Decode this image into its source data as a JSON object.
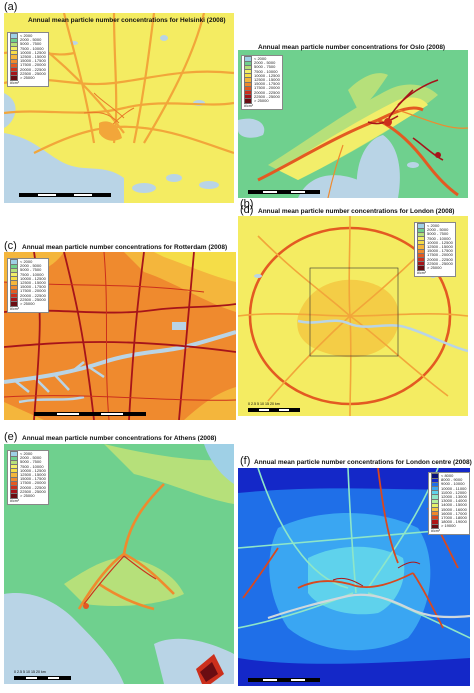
{
  "panels": [
    {
      "label": "(a)",
      "title": "Annual mean particle number concentrations for Helsinki (2008)",
      "legend": [
        "< 2000",
        "2000 - 5000",
        "5000 - 7500",
        "7500 - 10000",
        "10000 - 12500",
        "12500 - 15000",
        "15000 - 17500",
        "17500 - 20000",
        "20000 - 22500",
        "22500 - 25000",
        "> 25000"
      ],
      "unit": "#/cm³"
    },
    {
      "label": "(b)",
      "title": "Annual mean particle number concentrations for Oslo (2008)",
      "legend": [
        "< 2000",
        "2000 - 5000",
        "5000 - 7500",
        "7500 - 10000",
        "10000 - 12500",
        "12500 - 15000",
        "15000 - 17500",
        "17500 - 20000",
        "20000 - 22500",
        "22500 - 25000",
        "> 25000"
      ],
      "unit": "#/cm³"
    },
    {
      "label": "(c)",
      "title": "Annual mean particle number concentrations for Rotterdam (2008)",
      "legend": [
        "< 2000",
        "2000 - 5000",
        "5000 - 7500",
        "7500 - 10000",
        "10000 - 12500",
        "12500 - 15000",
        "15000 - 17500",
        "17500 - 20000",
        "20000 - 22500",
        "22500 - 25000",
        "> 25000"
      ],
      "unit": "#/cm³"
    },
    {
      "label": "(d)",
      "title": "Annual mean particle number concentrations for London (2008)",
      "legend": [
        "< 2000",
        "2000 - 5000",
        "5000 - 7500",
        "7500 - 10000",
        "10000 - 12500",
        "12500 - 15000",
        "15000 - 17500",
        "17500 - 20000",
        "20000 - 22500",
        "22500 - 25000",
        "> 25000"
      ],
      "unit": "#/cm³",
      "scale_text": "0  2.5  5  10  15  20 km"
    },
    {
      "label": "(e)",
      "title": "Annual mean particle number concentrations for Athens (2008)",
      "legend": [
        "< 2000",
        "2000 - 5000",
        "5000 - 7500",
        "7500 - 10000",
        "10000 - 12500",
        "12500 - 15000",
        "15000 - 17500",
        "17500 - 20000",
        "20000 - 22500",
        "22500 - 25000",
        "> 25000"
      ],
      "unit": "#/cm³",
      "scale_text": "0 2.5 5  10  15  20 km"
    },
    {
      "label": "(f)",
      "title": "Annual mean particle number concentrations for London centre (2008)",
      "legend": [
        "< 8000",
        "8000 - 9000",
        "9000 - 10000",
        "10000 - 11000",
        "11000 - 12000",
        "12000 - 13000",
        "13000 - 14000",
        "14000 - 15000",
        "15000 - 16000",
        "16000 - 17000",
        "17000 - 18000",
        "18000 - 19000",
        "> 19000"
      ],
      "unit": "#/cm³"
    }
  ],
  "colors": {
    "scale_main": [
      "#9fd0e6",
      "#6fd08e",
      "#b6e07a",
      "#f2ee6a",
      "#f5dd48",
      "#f4b63c",
      "#ef8a2e",
      "#e35a22",
      "#cc2f1c",
      "#a6141a",
      "#6a0d12"
    ],
    "scale_centre": [
      "#0a127a",
      "#1428c8",
      "#1f6fe8",
      "#3aa6f2",
      "#5fd2ec",
      "#8ee6c8",
      "#b6f09a",
      "#e6f26a",
      "#f7c542",
      "#f0872c",
      "#d9481e",
      "#b01616",
      "#6a0d12"
    ],
    "water": "#b9d4e6"
  }
}
